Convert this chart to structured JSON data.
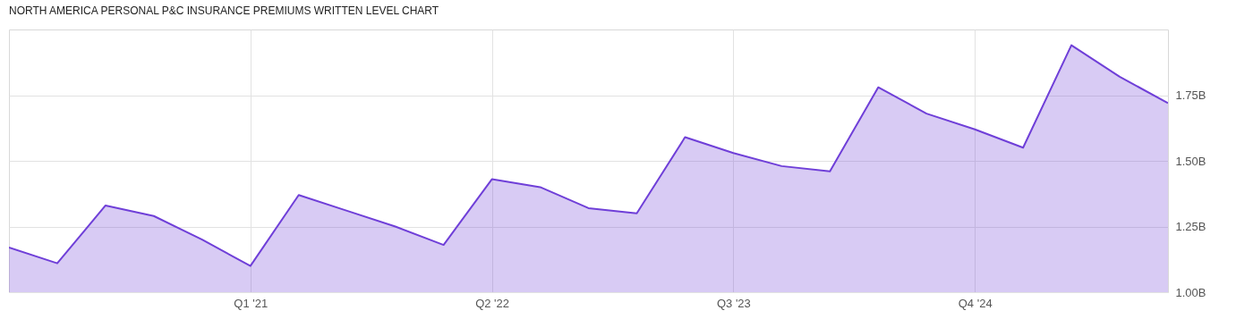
{
  "chart_data": {
    "type": "area",
    "title": "NORTH AMERICA PERSONAL P&C INSURANCE PREMIUMS WRITTEN LEVEL CHART",
    "categories": [
      null,
      null,
      null,
      null,
      null,
      "Q1 '21",
      null,
      null,
      null,
      null,
      "Q2 '22",
      null,
      null,
      null,
      null,
      "Q3 '23",
      null,
      null,
      null,
      null,
      "Q4 '24",
      null,
      null,
      null,
      null
    ],
    "series": [
      {
        "color": "#6f3fd8",
        "values": [
          1.17,
          1.11,
          1.33,
          1.29,
          1.2,
          1.1,
          1.37,
          1.31,
          1.25,
          1.18,
          1.43,
          1.4,
          1.32,
          1.3,
          1.59,
          1.53,
          1.48,
          1.46,
          1.78,
          1.68,
          1.62,
          1.55,
          1.94,
          1.82,
          1.72
        ]
      }
    ],
    "ylim": [
      1.0,
      2.0
    ],
    "yticks": [
      {
        "value": 1.0,
        "label": "1.00B"
      },
      {
        "value": 1.25,
        "label": "1.25B"
      },
      {
        "value": 1.5,
        "label": "1.50B"
      },
      {
        "value": 1.75,
        "label": "1.75B"
      }
    ],
    "grid": true
  }
}
